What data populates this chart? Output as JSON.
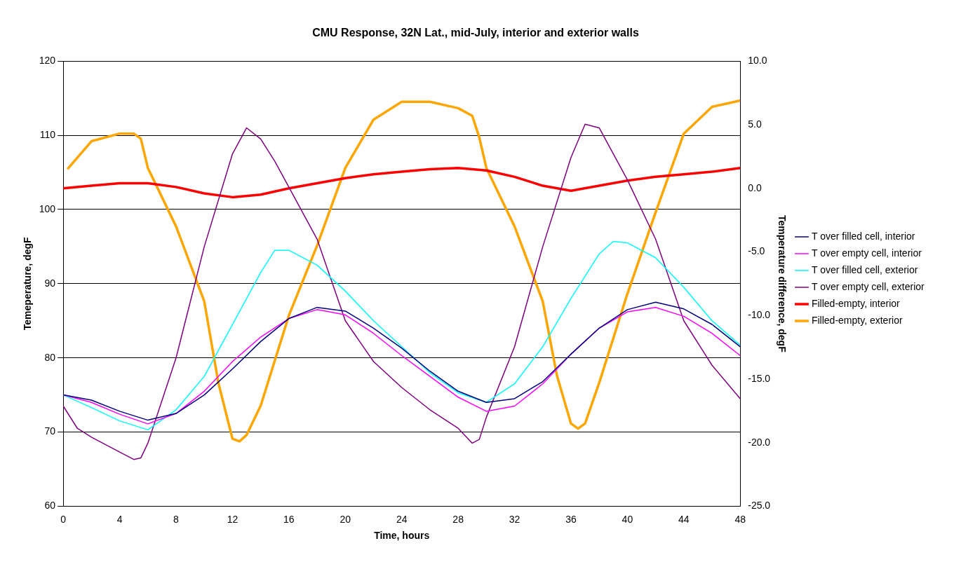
{
  "chart_data": {
    "type": "line",
    "title": "CMU Response, 32N Lat., mid-July, interior and exterior walls",
    "xlabel": "Time, hours",
    "ylabel": "Temeperature, degF",
    "y2label": "Temperature difference, degF",
    "xlim": [
      0,
      48
    ],
    "xticks": [
      0,
      4,
      8,
      12,
      16,
      20,
      24,
      28,
      32,
      36,
      40,
      44,
      48
    ],
    "ylim": [
      60,
      120
    ],
    "yticks": [
      60,
      70,
      80,
      90,
      100,
      110,
      120
    ],
    "y2lim": [
      -25,
      10
    ],
    "y2ticks": [
      {
        "value": -25,
        "label": "-25.0"
      },
      {
        "value": -20,
        "label": "-20.0"
      },
      {
        "value": -15,
        "label": "-15.0"
      },
      {
        "value": -10,
        "label": "-10.0"
      },
      {
        "value": -5,
        "label": "-5.0"
      },
      {
        "value": 0,
        "label": "0.0"
      },
      {
        "value": 5,
        "label": "5.0"
      },
      {
        "value": 10,
        "label": "10.0"
      }
    ],
    "grid": "y",
    "legend": "right",
    "marker": "none",
    "series": [
      {
        "name": "T over filled cell, interior",
        "color": "#000080",
        "x": [
          0,
          2,
          4,
          6,
          8,
          10,
          12,
          14,
          16,
          18,
          20,
          22,
          24,
          26,
          28,
          30,
          32,
          34,
          36,
          38,
          40,
          42,
          44,
          46,
          48
        ],
        "values": [
          75,
          74.3,
          72.8,
          71.6,
          72.5,
          75,
          78.5,
          82.2,
          85.3,
          86.8,
          86.3,
          84,
          81.3,
          78.2,
          75.5,
          74,
          74.5,
          76.8,
          80.5,
          84,
          86.5,
          87.5,
          86.6,
          84.5,
          81.5
        ]
      },
      {
        "name": "T over empty cell, interior",
        "color": "#ff00ff",
        "x": [
          0,
          2,
          4,
          6,
          8,
          10,
          12,
          14,
          16,
          18,
          20,
          22,
          24,
          26,
          28,
          30,
          32,
          34,
          36,
          38,
          40,
          42,
          44,
          46,
          48
        ],
        "values": [
          75,
          74,
          72.4,
          71.1,
          72.5,
          75.5,
          79.5,
          82.8,
          85.3,
          86.5,
          85.8,
          83.3,
          80.3,
          77.5,
          74.7,
          72.8,
          73.5,
          76.5,
          80.5,
          84,
          86.2,
          86.8,
          85.6,
          83.3,
          80.3
        ]
      },
      {
        "name": "T over filled cell, exterior",
        "color": "#00ffff",
        "x": [
          0,
          2,
          4,
          6,
          8,
          10,
          12,
          14,
          15,
          16,
          18,
          20,
          22,
          24,
          26,
          28,
          30,
          32,
          34,
          36,
          38,
          39,
          40,
          42,
          44,
          46,
          48
        ],
        "values": [
          75,
          73.3,
          71.5,
          70.3,
          73,
          77.5,
          84.5,
          91.5,
          94.5,
          94.5,
          92.5,
          89,
          85,
          81.5,
          78,
          75.3,
          74,
          76.5,
          81.5,
          88,
          94,
          95.7,
          95.5,
          93.5,
          89.5,
          85,
          81.7
        ]
      },
      {
        "name": "T over empty cell, exterior",
        "color": "#800080",
        "x": [
          0,
          1,
          2,
          4,
          5,
          5.5,
          6,
          8,
          10,
          12,
          13,
          14,
          15,
          16,
          18,
          20,
          22,
          24,
          26,
          28,
          29,
          29.5,
          30,
          32,
          34,
          36,
          37,
          38,
          40,
          42,
          44,
          46,
          48
        ],
        "values": [
          73.5,
          70.5,
          69.3,
          67.3,
          66.3,
          66.5,
          68.5,
          80,
          95,
          107.5,
          111,
          109.5,
          106.5,
          103,
          96,
          85,
          79.5,
          76,
          73,
          70.5,
          68.5,
          69,
          72,
          81.5,
          95,
          107,
          111.5,
          111,
          104,
          96,
          85,
          79,
          74.5
        ]
      },
      {
        "name": "Filled-empty, interior",
        "color": "#ff0000",
        "axis": "y2",
        "x": [
          0,
          2,
          4,
          6,
          8,
          10,
          12,
          14,
          16,
          18,
          20,
          22,
          24,
          26,
          28,
          30,
          32,
          34,
          36,
          38,
          40,
          42,
          44,
          46,
          48
        ],
        "values": [
          0,
          0.2,
          0.4,
          0.4,
          0.1,
          -0.4,
          -0.7,
          -0.5,
          0,
          0.4,
          0.8,
          1.1,
          1.3,
          1.5,
          1.6,
          1.4,
          0.9,
          0.2,
          -0.2,
          0.2,
          0.6,
          0.9,
          1.1,
          1.3,
          1.6
        ]
      },
      {
        "name": "Filled-empty, exterior",
        "color": "#ffa500",
        "axis": "y2",
        "x": [
          0.3,
          2,
          4,
          5,
          5.5,
          6,
          8,
          10,
          11,
          12,
          12.5,
          13,
          14,
          16,
          18,
          20,
          22,
          24,
          26,
          28,
          29,
          29.5,
          30,
          32,
          34,
          35,
          36,
          36.5,
          37,
          38,
          40,
          42,
          44,
          46,
          48
        ],
        "values": [
          1.5,
          3.7,
          4.3,
          4.3,
          3.9,
          1.6,
          -3,
          -8.9,
          -15.3,
          -19.7,
          -19.9,
          -19.4,
          -17.1,
          -10,
          -4.5,
          1.6,
          5.4,
          6.8,
          6.8,
          6.3,
          5.7,
          4,
          1.6,
          -3,
          -8.9,
          -14.7,
          -18.5,
          -18.9,
          -18.5,
          -15.3,
          -8.3,
          -1.9,
          4.3,
          6.4,
          6.9
        ]
      }
    ]
  }
}
